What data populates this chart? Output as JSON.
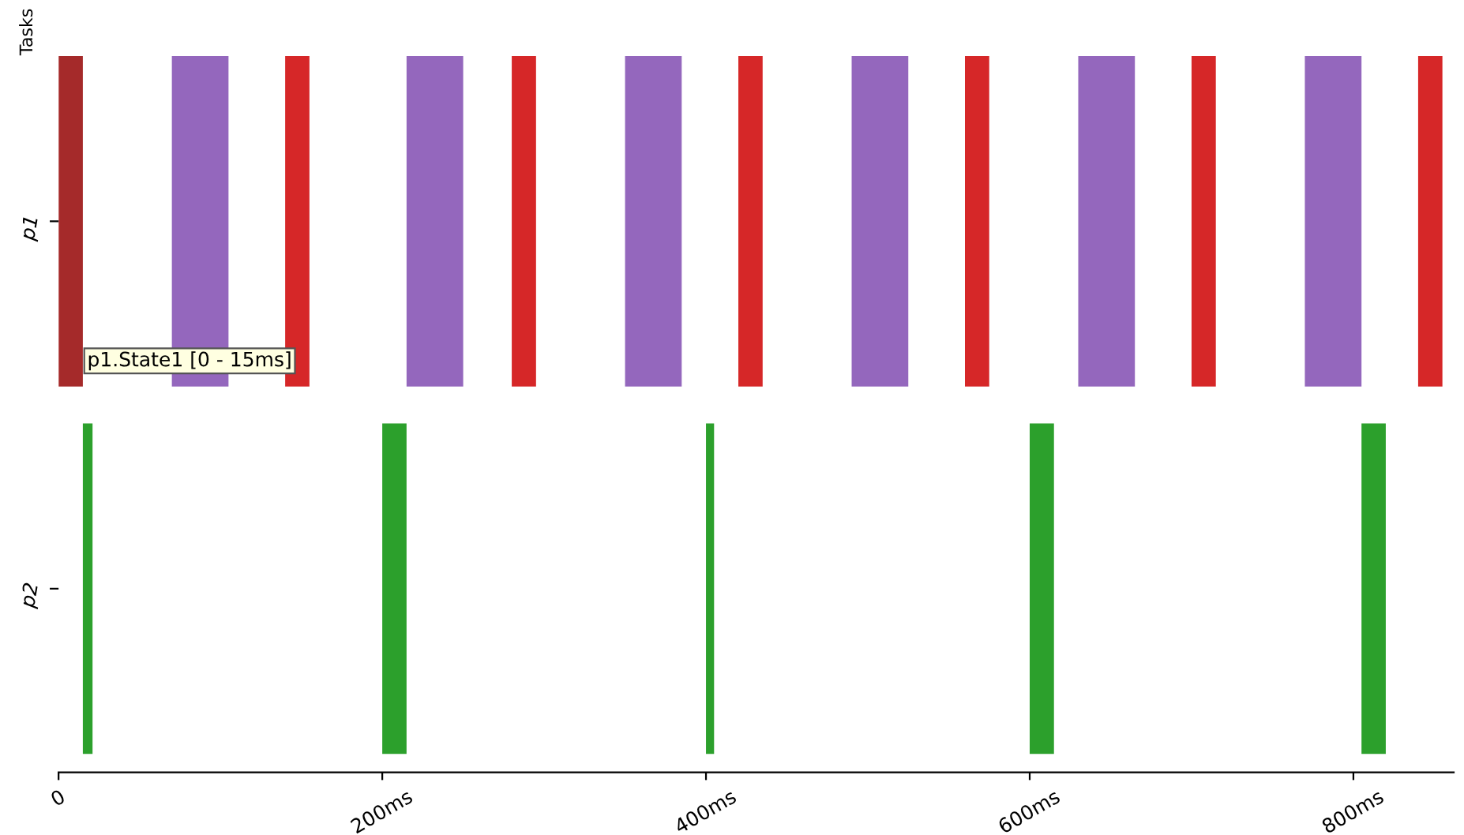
{
  "chart_data": {
    "type": "bar",
    "orientation": "horizontal",
    "categories": [
      "p1",
      "p2"
    ],
    "series": [
      {
        "color": "#a52a2a",
        "base": [
          0,
          null
        ],
        "values": [
          15,
          null
        ]
      },
      {
        "color": "#9467bd",
        "base": [
          70,
          null
        ],
        "values": [
          35,
          null
        ]
      },
      {
        "color": "#d62728",
        "base": [
          140,
          null
        ],
        "values": [
          15,
          null
        ]
      },
      {
        "color": "#9467bd",
        "base": [
          215,
          null
        ],
        "values": [
          35,
          null
        ]
      },
      {
        "color": "#d62728",
        "base": [
          280,
          null
        ],
        "values": [
          15,
          null
        ]
      },
      {
        "color": "#9467bd",
        "base": [
          350,
          null
        ],
        "values": [
          35,
          null
        ]
      },
      {
        "color": "#d62728",
        "base": [
          420,
          null
        ],
        "values": [
          15,
          null
        ]
      },
      {
        "color": "#9467bd",
        "base": [
          490,
          null
        ],
        "values": [
          35,
          null
        ]
      },
      {
        "color": "#d62728",
        "base": [
          560,
          null
        ],
        "values": [
          15,
          null
        ]
      },
      {
        "color": "#9467bd",
        "base": [
          630,
          null
        ],
        "values": [
          35,
          null
        ]
      },
      {
        "color": "#d62728",
        "base": [
          700,
          null
        ],
        "values": [
          15,
          null
        ]
      },
      {
        "color": "#9467bd",
        "base": [
          770,
          null
        ],
        "values": [
          35,
          null
        ]
      },
      {
        "color": "#d62728",
        "base": [
          840,
          null
        ],
        "values": [
          15,
          null
        ]
      },
      {
        "color": "#2ca02c",
        "base": [
          null,
          15
        ],
        "values": [
          null,
          6
        ]
      },
      {
        "color": "#2ca02c",
        "base": [
          null,
          200
        ],
        "values": [
          null,
          15
        ]
      },
      {
        "color": "#2ca02c",
        "base": [
          null,
          400
        ],
        "values": [
          null,
          5
        ]
      },
      {
        "color": "#2ca02c",
        "base": [
          null,
          600
        ],
        "values": [
          null,
          15
        ]
      },
      {
        "color": "#2ca02c",
        "base": [
          null,
          805
        ],
        "values": [
          null,
          15
        ]
      }
    ],
    "xlim": [
      0,
      862
    ],
    "xticks": [
      0,
      {
        "value": 200,
        "label": "200ms"
      },
      {
        "value": 400,
        "label": "400ms"
      },
      {
        "value": 600,
        "label": "600ms"
      },
      {
        "value": 800,
        "label": "800ms"
      }
    ],
    "grid": false,
    "legend": false,
    "annotations": [
      "Tasks",
      {
        "text": "p1.State1 [0 - 15ms]",
        "x": 15,
        "y": "p1"
      }
    ]
  }
}
